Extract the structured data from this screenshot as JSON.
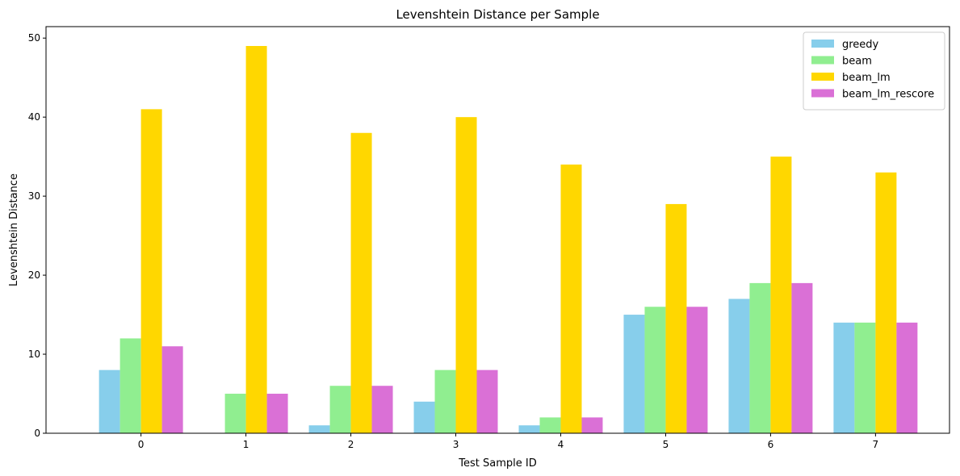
{
  "chart_data": {
    "type": "bar",
    "title": "Levenshtein Distance per Sample",
    "xlabel": "Test Sample ID",
    "ylabel": "Levenshtein Distance",
    "categories": [
      "0",
      "1",
      "2",
      "3",
      "4",
      "5",
      "6",
      "7"
    ],
    "ylim": [
      0,
      51.45
    ],
    "yticks": [
      0,
      10,
      20,
      30,
      40,
      50
    ],
    "grid": false,
    "legend_position": "top-right",
    "series": [
      {
        "name": "greedy",
        "color": "#87CEEB",
        "values": [
          8,
          0,
          1,
          4,
          1,
          15,
          17,
          14
        ]
      },
      {
        "name": "beam",
        "color": "#90EE90",
        "values": [
          12,
          5,
          6,
          8,
          2,
          16,
          19,
          14
        ]
      },
      {
        "name": "beam_lm",
        "color": "#FFD700",
        "values": [
          41,
          49,
          38,
          40,
          34,
          29,
          35,
          33
        ]
      },
      {
        "name": "beam_lm_rescore",
        "color": "#DA70D6",
        "values": [
          11,
          5,
          6,
          8,
          2,
          16,
          19,
          14
        ]
      }
    ]
  }
}
